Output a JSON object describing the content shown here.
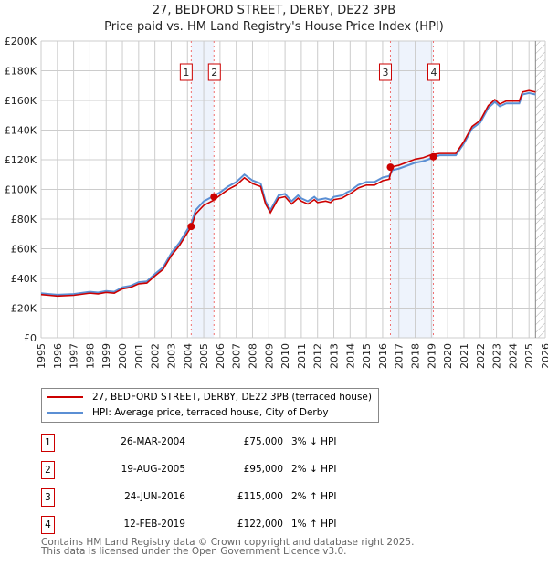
{
  "chart_data": {
    "type": "line",
    "title": "27, BEDFORD STREET, DERBY, DE22 3PB",
    "subtitle": "Price paid vs. HM Land Registry's House Price Index (HPI)",
    "xlim": [
      1995,
      2026
    ],
    "ylim": [
      0,
      200000
    ],
    "x_ticks": [
      "1995",
      "1996",
      "1997",
      "1998",
      "1999",
      "2000",
      "2001",
      "2002",
      "2003",
      "2004",
      "2005",
      "2006",
      "2007",
      "2008",
      "2009",
      "2010",
      "2011",
      "2012",
      "2013",
      "2014",
      "2015",
      "2016",
      "2017",
      "2018",
      "2019",
      "2020",
      "2021",
      "2022",
      "2023",
      "2024",
      "2025",
      "2026"
    ],
    "y_ticks": [
      {
        "v": 0,
        "l": "£0"
      },
      {
        "v": 20000,
        "l": "£20K"
      },
      {
        "v": 40000,
        "l": "£40K"
      },
      {
        "v": 60000,
        "l": "£60K"
      },
      {
        "v": 80000,
        "l": "£80K"
      },
      {
        "v": 100000,
        "l": "£100K"
      },
      {
        "v": 120000,
        "l": "£120K"
      },
      {
        "v": 140000,
        "l": "£140K"
      },
      {
        "v": 160000,
        "l": "£160K"
      },
      {
        "v": 180000,
        "l": "£180K"
      },
      {
        "v": 200000,
        "l": "£200K"
      }
    ],
    "grid": true,
    "series": [
      {
        "name": "27, BEDFORD STREET, DERBY, DE22 3PB (terraced house)",
        "color": "#cc0000",
        "relative_to_hpi": [
          0.97,
          0.98,
          1.02,
          1.01
        ]
      },
      {
        "name": "HPI: Average price, terraced house, City of Derby",
        "color": "#5b8fd4",
        "x": [
          1995,
          1995.5,
          1996,
          1997,
          1998,
          1998.5,
          1999,
          1999.5,
          2000,
          2000.5,
          2001,
          2001.5,
          2002,
          2002.5,
          2003,
          2003.5,
          2004,
          2004.25,
          2004.5,
          2005,
          2005.6,
          2006,
          2006.5,
          2007,
          2007.5,
          2008,
          2008.5,
          2008.8,
          2009.1,
          2009.6,
          2010,
          2010.4,
          2010.8,
          2011,
          2011.4,
          2011.8,
          2012,
          2012.5,
          2012.8,
          2013,
          2013.5,
          2013.8,
          2014,
          2014.5,
          2015,
          2015.5,
          2016,
          2016.4,
          2016.6,
          2017,
          2017.5,
          2018,
          2018.5,
          2019,
          2019.5,
          2020,
          2020.5,
          2021,
          2021.5,
          2022,
          2022.5,
          2022.9,
          2023.2,
          2023.6,
          2024,
          2024.4,
          2024.6,
          2025,
          2025.4
        ],
        "y": [
          30000,
          29500,
          29000,
          29500,
          31000,
          30500,
          31500,
          31000,
          34000,
          35000,
          37500,
          38000,
          43000,
          47500,
          57000,
          64000,
          73000,
          77500,
          86000,
          92000,
          95500,
          98000,
          102000,
          105000,
          110000,
          106000,
          104000,
          92000,
          86000,
          96000,
          97000,
          92000,
          96000,
          94000,
          92000,
          95000,
          93000,
          94000,
          93000,
          95000,
          96000,
          98000,
          99000,
          103000,
          105000,
          105000,
          108000,
          109000,
          113000,
          114000,
          116000,
          118000,
          119000,
          121000,
          123000,
          123000,
          123000,
          131000,
          141000,
          145000,
          155000,
          159000,
          156000,
          158000,
          158000,
          158000,
          164000,
          165000,
          164000
        ]
      }
    ],
    "sales": [
      {
        "n": "1",
        "x": 2004.23,
        "date": "26-MAR-2004",
        "price": "£75,000",
        "value": 75000,
        "hpi": "3% ↓ HPI"
      },
      {
        "n": "2",
        "x": 2005.63,
        "date": "19-AUG-2005",
        "price": "£95,000",
        "value": 95000,
        "hpi": "2% ↓ HPI"
      },
      {
        "n": "3",
        "x": 2016.48,
        "date": "24-JUN-2016",
        "price": "£115,000",
        "value": 115000,
        "hpi": "2% ↑ HPI"
      },
      {
        "n": "4",
        "x": 2019.12,
        "date": "12-FEB-2019",
        "price": "£122,000",
        "value": 122000,
        "hpi": "1% ↑ HPI"
      }
    ],
    "forecast_start": 2025.4
  },
  "footer": {
    "line1": "Contains HM Land Registry data © Crown copyright and database right 2025.",
    "line2": "This data is licensed under the Open Government Licence v3.0."
  }
}
